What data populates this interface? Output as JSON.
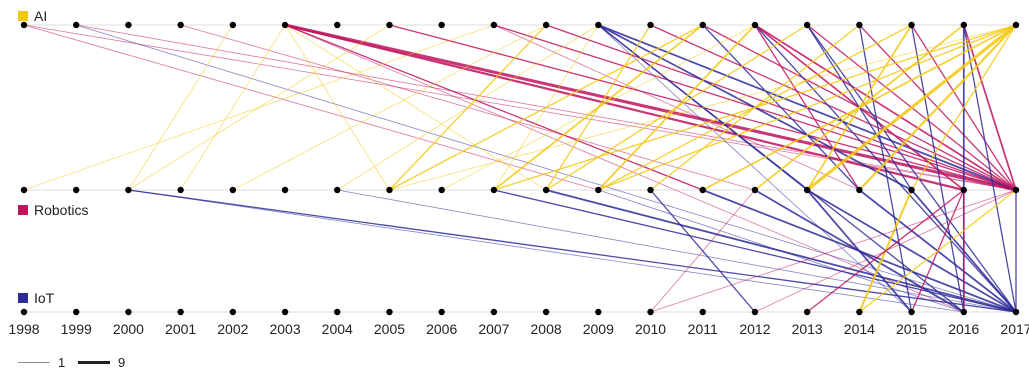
{
  "rows": [
    {
      "key": "ai",
      "label": "AI",
      "color": "#f2c80f"
    },
    {
      "key": "robotics",
      "label": "Robotics",
      "color": "#c0135e"
    },
    {
      "key": "iot",
      "label": "IoT",
      "color": "#2d2a99"
    }
  ],
  "years": [
    "1998",
    "1999",
    "2000",
    "2001",
    "2002",
    "2003",
    "2004",
    "2005",
    "2006",
    "2007",
    "2008",
    "2009",
    "2010",
    "2011",
    "2012",
    "2013",
    "2014",
    "2015",
    "2016",
    "2017"
  ],
  "legend": {
    "min_label": "1",
    "max_label": "9"
  },
  "links": [
    {
      "from_row": "ai",
      "from_year": "1998",
      "to_row": "robotics",
      "to_year": "2017",
      "weight": 1,
      "color": "#c0135e"
    },
    {
      "from_row": "ai",
      "from_year": "1998",
      "to_row": "robotics",
      "to_year": "2009",
      "weight": 1,
      "color": "#c0135e"
    },
    {
      "from_row": "ai",
      "from_year": "1999",
      "to_row": "robotics",
      "to_year": "2017",
      "weight": 1,
      "color": "#c0135e"
    },
    {
      "from_row": "ai",
      "from_year": "1999",
      "to_row": "iot",
      "to_year": "2017",
      "weight": 1,
      "color": "#2d2a99"
    },
    {
      "from_row": "ai",
      "from_year": "2001",
      "to_row": "robotics",
      "to_year": "2012",
      "weight": 1,
      "color": "#c0135e"
    },
    {
      "from_row": "ai",
      "from_year": "2002",
      "to_row": "robotics",
      "to_year": "2000",
      "weight": 1,
      "color": "#f2c80f"
    },
    {
      "from_row": "ai",
      "from_year": "2003",
      "to_row": "robotics",
      "to_year": "2017",
      "weight": 6,
      "color": "#c0135e"
    },
    {
      "from_row": "ai",
      "from_year": "2003",
      "to_row": "robotics",
      "to_year": "2016",
      "weight": 4,
      "color": "#c0135e"
    },
    {
      "from_row": "ai",
      "from_year": "2003",
      "to_row": "robotics",
      "to_year": "2011",
      "weight": 2,
      "color": "#c0135e"
    },
    {
      "from_row": "ai",
      "from_year": "2003",
      "to_row": "robotics",
      "to_year": "2001",
      "weight": 1,
      "color": "#f2c80f"
    },
    {
      "from_row": "ai",
      "from_year": "2003",
      "to_row": "robotics",
      "to_year": "2005",
      "weight": 1,
      "color": "#f2c80f"
    },
    {
      "from_row": "ai",
      "from_year": "2003",
      "to_row": "robotics",
      "to_year": "2008",
      "weight": 1,
      "color": "#f2c80f"
    },
    {
      "from_row": "ai",
      "from_year": "2003",
      "to_row": "iot",
      "to_year": "2016",
      "weight": 1,
      "color": "#c0135e"
    },
    {
      "from_row": "ai",
      "from_year": "2005",
      "to_row": "robotics",
      "to_year": "2017",
      "weight": 2,
      "color": "#c0135e"
    },
    {
      "from_row": "ai",
      "from_year": "2005",
      "to_row": "robotics",
      "to_year": "2000",
      "weight": 1,
      "color": "#f2c80f"
    },
    {
      "from_row": "ai",
      "from_year": "2007",
      "to_row": "robotics",
      "to_year": "1998",
      "weight": 1,
      "color": "#f2c80f"
    },
    {
      "from_row": "ai",
      "from_year": "2007",
      "to_row": "robotics",
      "to_year": "2017",
      "weight": 2,
      "color": "#c0135e"
    },
    {
      "from_row": "ai",
      "from_year": "2007",
      "to_row": "robotics",
      "to_year": "2014",
      "weight": 1,
      "color": "#c0135e"
    },
    {
      "from_row": "ai",
      "from_year": "2008",
      "to_row": "robotics",
      "to_year": "2005",
      "weight": 2,
      "color": "#f2c80f"
    },
    {
      "from_row": "ai",
      "from_year": "2008",
      "to_row": "robotics",
      "to_year": "2002",
      "weight": 1,
      "color": "#f2c80f"
    },
    {
      "from_row": "ai",
      "from_year": "2008",
      "to_row": "robotics",
      "to_year": "2017",
      "weight": 2,
      "color": "#c0135e"
    },
    {
      "from_row": "ai",
      "from_year": "2009",
      "to_row": "robotics",
      "to_year": "2017",
      "weight": 3,
      "color": "#2d2a99"
    },
    {
      "from_row": "ai",
      "from_year": "2009",
      "to_row": "robotics",
      "to_year": "2015",
      "weight": 3,
      "color": "#2d2a99"
    },
    {
      "from_row": "ai",
      "from_year": "2009",
      "to_row": "robotics",
      "to_year": "2013",
      "weight": 2,
      "color": "#2d2a99"
    },
    {
      "from_row": "ai",
      "from_year": "2009",
      "to_row": "robotics",
      "to_year": "2007",
      "weight": 1,
      "color": "#f2c80f"
    },
    {
      "from_row": "ai",
      "from_year": "2009",
      "to_row": "robotics",
      "to_year": "2004",
      "weight": 1,
      "color": "#f2c80f"
    },
    {
      "from_row": "ai",
      "from_year": "2009",
      "to_row": "iot",
      "to_year": "2016",
      "weight": 2,
      "color": "#2d2a99"
    },
    {
      "from_row": "ai",
      "from_year": "2009",
      "to_row": "iot",
      "to_year": "2015",
      "weight": 1,
      "color": "#2d2a99"
    },
    {
      "from_row": "ai",
      "from_year": "2010",
      "to_row": "robotics",
      "to_year": "2008",
      "weight": 2,
      "color": "#f2c80f"
    },
    {
      "from_row": "ai",
      "from_year": "2010",
      "to_row": "robotics",
      "to_year": "2017",
      "weight": 2,
      "color": "#c0135e"
    },
    {
      "from_row": "ai",
      "from_year": "2011",
      "to_row": "robotics",
      "to_year": "2007",
      "weight": 3,
      "color": "#f2c80f"
    },
    {
      "from_row": "ai",
      "from_year": "2011",
      "to_row": "robotics",
      "to_year": "2005",
      "weight": 2,
      "color": "#f2c80f"
    },
    {
      "from_row": "ai",
      "from_year": "2011",
      "to_row": "robotics",
      "to_year": "2017",
      "weight": 2,
      "color": "#c0135e"
    },
    {
      "from_row": "ai",
      "from_year": "2011",
      "to_row": "robotics",
      "to_year": "2014",
      "weight": 2,
      "color": "#2d2a99"
    },
    {
      "from_row": "ai",
      "from_year": "2012",
      "to_row": "robotics",
      "to_year": "2009",
      "weight": 3,
      "color": "#f2c80f"
    },
    {
      "from_row": "ai",
      "from_year": "2012",
      "to_row": "robotics",
      "to_year": "2017",
      "weight": 3,
      "color": "#c0135e"
    },
    {
      "from_row": "ai",
      "from_year": "2012",
      "to_row": "robotics",
      "to_year": "2016",
      "weight": 3,
      "color": "#c0135e"
    },
    {
      "from_row": "ai",
      "from_year": "2012",
      "to_row": "robotics",
      "to_year": "2014",
      "weight": 2,
      "color": "#c0135e"
    },
    {
      "from_row": "ai",
      "from_year": "2012",
      "to_row": "robotics",
      "to_year": "2006",
      "weight": 1,
      "color": "#f2c80f"
    },
    {
      "from_row": "ai",
      "from_year": "2012",
      "to_row": "iot",
      "to_year": "2017",
      "weight": 2,
      "color": "#2d2a99"
    },
    {
      "from_row": "ai",
      "from_year": "2013",
      "to_row": "robotics",
      "to_year": "2008",
      "weight": 2,
      "color": "#f2c80f"
    },
    {
      "from_row": "ai",
      "from_year": "2013",
      "to_row": "robotics",
      "to_year": "2017",
      "weight": 2,
      "color": "#c0135e"
    },
    {
      "from_row": "ai",
      "from_year": "2013",
      "to_row": "robotics",
      "to_year": "2015",
      "weight": 2,
      "color": "#2d2a99"
    },
    {
      "from_row": "ai",
      "from_year": "2013",
      "to_row": "iot",
      "to_year": "2017",
      "weight": 2,
      "color": "#2d2a99"
    },
    {
      "from_row": "ai",
      "from_year": "2014",
      "to_row": "robotics",
      "to_year": "2010",
      "weight": 2,
      "color": "#f2c80f"
    },
    {
      "from_row": "ai",
      "from_year": "2014",
      "to_row": "robotics",
      "to_year": "2017",
      "weight": 2,
      "color": "#c0135e"
    },
    {
      "from_row": "ai",
      "from_year": "2014",
      "to_row": "iot",
      "to_year": "2015",
      "weight": 2,
      "color": "#2d2a99"
    },
    {
      "from_row": "ai",
      "from_year": "2015",
      "to_row": "robotics",
      "to_year": "2013",
      "weight": 3,
      "color": "#f2c80f"
    },
    {
      "from_row": "ai",
      "from_year": "2015",
      "to_row": "robotics",
      "to_year": "2009",
      "weight": 2,
      "color": "#f2c80f"
    },
    {
      "from_row": "ai",
      "from_year": "2015",
      "to_row": "robotics",
      "to_year": "2017",
      "weight": 2,
      "color": "#c0135e"
    },
    {
      "from_row": "ai",
      "from_year": "2015",
      "to_row": "iot",
      "to_year": "2016",
      "weight": 2,
      "color": "#2d2a99"
    },
    {
      "from_row": "ai",
      "from_year": "2016",
      "to_row": "robotics",
      "to_year": "2012",
      "weight": 3,
      "color": "#f2c80f"
    },
    {
      "from_row": "ai",
      "from_year": "2016",
      "to_row": "robotics",
      "to_year": "2017",
      "weight": 3,
      "color": "#c0135e"
    },
    {
      "from_row": "ai",
      "from_year": "2016",
      "to_row": "iot",
      "to_year": "2016",
      "weight": 3,
      "color": "#2d2a99"
    },
    {
      "from_row": "ai",
      "from_year": "2016",
      "to_row": "iot",
      "to_year": "2017",
      "weight": 2,
      "color": "#2d2a99"
    },
    {
      "from_row": "ai",
      "from_year": "2017",
      "to_row": "robotics",
      "to_year": "2013",
      "weight": 6,
      "color": "#f2c80f"
    },
    {
      "from_row": "ai",
      "from_year": "2017",
      "to_row": "robotics",
      "to_year": "2014",
      "weight": 4,
      "color": "#f2c80f"
    },
    {
      "from_row": "ai",
      "from_year": "2017",
      "to_row": "robotics",
      "to_year": "2011",
      "weight": 3,
      "color": "#f2c80f"
    },
    {
      "from_row": "ai",
      "from_year": "2017",
      "to_row": "robotics",
      "to_year": "2009",
      "weight": 2,
      "color": "#f2c80f"
    },
    {
      "from_row": "ai",
      "from_year": "2017",
      "to_row": "robotics",
      "to_year": "2007",
      "weight": 2,
      "color": "#f2c80f"
    },
    {
      "from_row": "ai",
      "from_year": "2017",
      "to_row": "robotics",
      "to_year": "2005",
      "weight": 1,
      "color": "#f2c80f"
    },
    {
      "from_row": "ai",
      "from_year": "2017",
      "to_row": "robotics",
      "to_year": "2015",
      "weight": 2,
      "color": "#f2c80f"
    },
    {
      "from_row": "robotics",
      "from_year": "2000",
      "to_row": "iot",
      "to_year": "2017",
      "weight": 2,
      "color": "#2d2a99"
    },
    {
      "from_row": "robotics",
      "from_year": "2000",
      "to_row": "iot",
      "to_year": "2016",
      "weight": 1,
      "color": "#2d2a99"
    },
    {
      "from_row": "robotics",
      "from_year": "2004",
      "to_row": "iot",
      "to_year": "2017",
      "weight": 1,
      "color": "#2d2a99"
    },
    {
      "from_row": "robotics",
      "from_year": "2007",
      "to_row": "iot",
      "to_year": "2017",
      "weight": 2,
      "color": "#2d2a99"
    },
    {
      "from_row": "robotics",
      "from_year": "2008",
      "to_row": "iot",
      "to_year": "2017",
      "weight": 3,
      "color": "#2d2a99"
    },
    {
      "from_row": "robotics",
      "from_year": "2009",
      "to_row": "iot",
      "to_year": "2016",
      "weight": 1,
      "color": "#2d2a99"
    },
    {
      "from_row": "robotics",
      "from_year": "2010",
      "to_row": "iot",
      "to_year": "2012",
      "weight": 2,
      "color": "#2d2a99"
    },
    {
      "from_row": "robotics",
      "from_year": "2011",
      "to_row": "iot",
      "to_year": "2017",
      "weight": 3,
      "color": "#2d2a99"
    },
    {
      "from_row": "robotics",
      "from_year": "2012",
      "to_row": "iot",
      "to_year": "2016",
      "weight": 3,
      "color": "#2d2a99"
    },
    {
      "from_row": "robotics",
      "from_year": "2012",
      "to_row": "iot",
      "to_year": "2010",
      "weight": 1,
      "color": "#c0135e"
    },
    {
      "from_row": "robotics",
      "from_year": "2013",
      "to_row": "iot",
      "to_year": "2015",
      "weight": 3,
      "color": "#2d2a99"
    },
    {
      "from_row": "robotics",
      "from_year": "2013",
      "to_row": "iot",
      "to_year": "2017",
      "weight": 3,
      "color": "#2d2a99"
    },
    {
      "from_row": "robotics",
      "from_year": "2014",
      "to_row": "iot",
      "to_year": "2017",
      "weight": 3,
      "color": "#2d2a99"
    },
    {
      "from_row": "robotics",
      "from_year": "2015",
      "to_row": "iot",
      "to_year": "2014",
      "weight": 4,
      "color": "#f2c80f"
    },
    {
      "from_row": "robotics",
      "from_year": "2015",
      "to_row": "iot",
      "to_year": "2017",
      "weight": 3,
      "color": "#2d2a99"
    },
    {
      "from_row": "robotics",
      "from_year": "2016",
      "to_row": "iot",
      "to_year": "2013",
      "weight": 2,
      "color": "#c0135e"
    },
    {
      "from_row": "robotics",
      "from_year": "2016",
      "to_row": "iot",
      "to_year": "2015",
      "weight": 2,
      "color": "#c0135e"
    },
    {
      "from_row": "robotics",
      "from_year": "2016",
      "to_row": "iot",
      "to_year": "2016",
      "weight": 2,
      "color": "#c0135e"
    },
    {
      "from_row": "robotics",
      "from_year": "2017",
      "to_row": "iot",
      "to_year": "2014",
      "weight": 2,
      "color": "#f2c80f"
    },
    {
      "from_row": "robotics",
      "from_year": "2017",
      "to_row": "iot",
      "to_year": "2012",
      "weight": 1,
      "color": "#c0135e"
    },
    {
      "from_row": "robotics",
      "from_year": "2017",
      "to_row": "iot",
      "to_year": "2010",
      "weight": 1,
      "color": "#c0135e"
    },
    {
      "from_row": "robotics",
      "from_year": "2017",
      "to_row": "iot",
      "to_year": "2017",
      "weight": 2,
      "color": "#2d2a99"
    }
  ]
}
